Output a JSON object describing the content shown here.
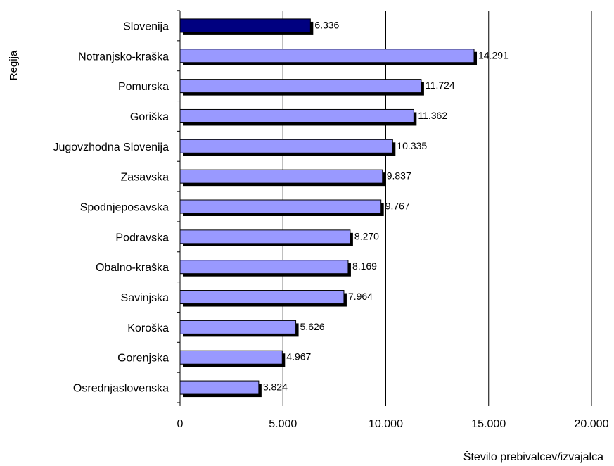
{
  "chart_data": {
    "type": "bar",
    "orientation": "horizontal",
    "categories": [
      "Slovenija",
      "Notranjsko-kraška",
      "Pomurska",
      "Goriška",
      "Jugovzhodna Slovenija",
      "Zasavska",
      "Spodnjeposavska",
      "Podravska",
      "Obalno-kraška",
      "Savinjska",
      "Koroška",
      "Gorenjska",
      "Osrednjaslovenska"
    ],
    "values": [
      6336,
      14291,
      11724,
      11362,
      10335,
      9837,
      9767,
      8270,
      8169,
      7964,
      5626,
      4967,
      3824
    ],
    "data_labels": [
      "6.336",
      "14.291",
      "11.724",
      "11.362",
      "10.335",
      "9.837",
      "9.767",
      "8.270",
      "8.169",
      "7.964",
      "5.626",
      "4.967",
      "3.824"
    ],
    "highlight_category": "Slovenija",
    "xlabel": "Število prebivalcev/izvajalca",
    "ylabel": "Regija",
    "xlim": [
      0,
      20000
    ],
    "x_ticks": [
      0,
      5000,
      10000,
      15000,
      20000
    ],
    "x_tick_labels": [
      "0",
      "5.000",
      "10.000",
      "15.000",
      "20.000"
    ],
    "grid": "vertical",
    "legend": "none",
    "colors": {
      "bar": "#9999ff",
      "highlight": "#000080",
      "shadow": "#000000",
      "grid": "#000000",
      "text": "#000000"
    }
  }
}
